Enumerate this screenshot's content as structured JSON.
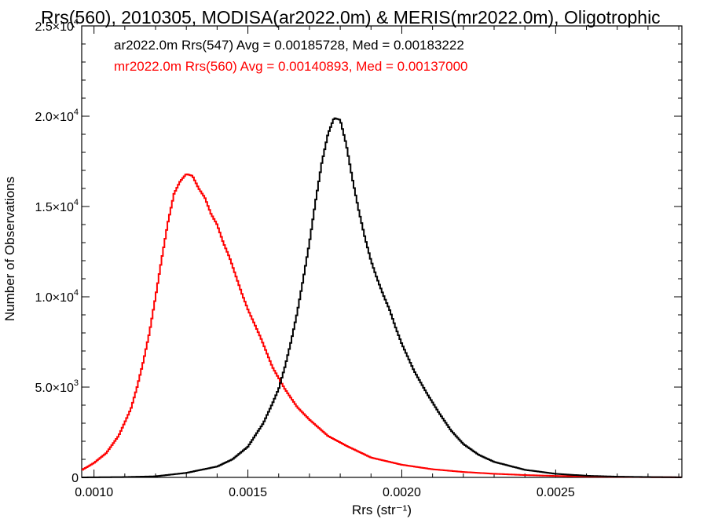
{
  "chart_data": {
    "type": "line",
    "title": "Rrs(560), 2010305, MODISA(ar2022.0m) & MERIS(mr2022.0m), Oligotrophic",
    "xlabel": "Rrs (str⁻¹)",
    "ylabel": "Number of Observations",
    "xlim": [
      0.00096,
      0.00291
    ],
    "ylim": [
      0,
      25000
    ],
    "x_ticks": [
      {
        "value": 0.001,
        "label": "0.0010"
      },
      {
        "value": 0.0015,
        "label": "0.0015"
      },
      {
        "value": 0.002,
        "label": "0.0020"
      },
      {
        "value": 0.0025,
        "label": "0.0025"
      }
    ],
    "y_ticks": [
      {
        "value": 0,
        "mant": "0",
        "exp": ""
      },
      {
        "value": 5000,
        "mant": "5.0×10",
        "exp": "3"
      },
      {
        "value": 10000,
        "mant": "1.0×10",
        "exp": "4"
      },
      {
        "value": 15000,
        "mant": "1.5×10",
        "exp": "4"
      },
      {
        "value": 20000,
        "mant": "2.0×10",
        "exp": "4"
      },
      {
        "value": 25000,
        "mant": "2.5×10",
        "exp": "4"
      }
    ],
    "grid": false,
    "legend_position": "top-left",
    "series": [
      {
        "name": "ar2022.0m Rrs(547) Avg = 0.00185728, Med = 0.00183222",
        "color": "#000000",
        "x": [
          0.00096,
          0.0011,
          0.0012,
          0.0013,
          0.0014,
          0.00145,
          0.0015,
          0.00155,
          0.00158,
          0.0016,
          0.00162,
          0.00164,
          0.00166,
          0.00168,
          0.0017,
          0.00172,
          0.00174,
          0.00176,
          0.00178,
          0.0018,
          0.00182,
          0.00184,
          0.00186,
          0.00188,
          0.0019,
          0.00192,
          0.00194,
          0.00196,
          0.00198,
          0.002,
          0.00204,
          0.00208,
          0.00212,
          0.00216,
          0.0022,
          0.00225,
          0.0023,
          0.0024,
          0.0025,
          0.0026,
          0.0027,
          0.0028,
          0.00291
        ],
        "y": [
          0,
          20,
          60,
          250,
          600,
          1000,
          1700,
          3000,
          4100,
          4900,
          6100,
          7500,
          9100,
          11000,
          13000,
          15300,
          17400,
          19000,
          19900,
          19800,
          18400,
          16500,
          14800,
          13300,
          12000,
          11000,
          10100,
          9300,
          8300,
          7400,
          5900,
          4700,
          3600,
          2600,
          1850,
          1250,
          860,
          420,
          200,
          90,
          40,
          20,
          5
        ]
      },
      {
        "name": "mr2022.0m Rrs(560) Avg = 0.00140893, Med = 0.00137000",
        "color": "#ff0000",
        "x": [
          0.00096,
          0.001,
          0.00104,
          0.00108,
          0.00112,
          0.00114,
          0.00116,
          0.00118,
          0.0012,
          0.00122,
          0.00124,
          0.00126,
          0.00128,
          0.0013,
          0.00132,
          0.00134,
          0.00136,
          0.00138,
          0.0014,
          0.00142,
          0.00144,
          0.00146,
          0.00148,
          0.0015,
          0.00154,
          0.00158,
          0.00162,
          0.00166,
          0.0017,
          0.00176,
          0.00182,
          0.0019,
          0.002,
          0.0021,
          0.0022,
          0.0023,
          0.0024,
          0.0025,
          0.0026,
          0.0027,
          0.0028,
          0.00291
        ],
        "y": [
          400,
          800,
          1350,
          2300,
          3800,
          5000,
          6400,
          8000,
          10000,
          12100,
          14100,
          15700,
          16400,
          16800,
          16700,
          16000,
          15500,
          14600,
          14000,
          13000,
          12200,
          11200,
          10200,
          9300,
          7800,
          6100,
          4900,
          3900,
          3200,
          2300,
          1750,
          1100,
          700,
          450,
          300,
          200,
          130,
          80,
          50,
          30,
          15,
          5
        ]
      }
    ]
  }
}
